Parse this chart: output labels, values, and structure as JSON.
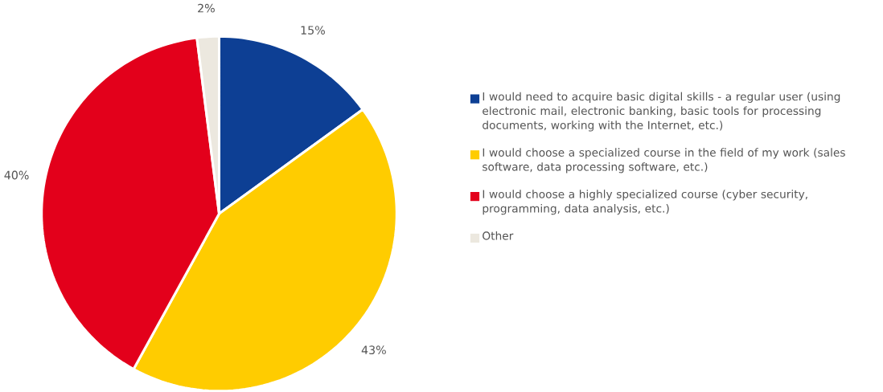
{
  "chart_data": {
    "type": "pie",
    "categories": [
      "I would need to acquire basic digital skills - a regular user (using electronic mail, electronic banking, basic tools for processing documents, working with the Internet, etc.)",
      "I would choose a specialized course in the field of my work (sales software, data processing software, etc.)",
      "I would choose a highly specialized course (cyber security, programming, data analysis, etc.)",
      "Other"
    ],
    "values": [
      15,
      43,
      40,
      2
    ],
    "value_labels": [
      "15%",
      "43%",
      "40%",
      "2%"
    ],
    "colors": [
      "#0d3f94",
      "#ffcc00",
      "#e3001b",
      "#ece8df"
    ],
    "legend": "right"
  }
}
